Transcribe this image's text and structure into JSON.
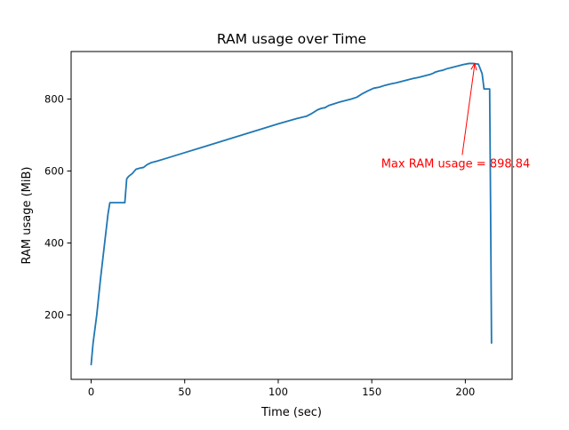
{
  "chart_data": {
    "type": "line",
    "title": "RAM usage over Time",
    "xlabel": "Time (sec)",
    "ylabel": "RAM usage (MiB)",
    "xlim": [
      -10.7,
      225
    ],
    "ylim": [
      21,
      932
    ],
    "xticks": [
      0,
      50,
      100,
      150,
      200
    ],
    "xtick_labels": [
      "0",
      "50",
      "100",
      "150",
      "200"
    ],
    "yticks": [
      200,
      400,
      600,
      800
    ],
    "ytick_labels": [
      "200",
      "400",
      "600",
      "800"
    ],
    "grid": false,
    "legend": "none",
    "series": [
      {
        "color": "#1f77b4",
        "x": [
          0,
          1,
          3,
          5,
          7,
          9,
          10,
          11,
          13,
          15,
          17,
          18,
          19,
          20,
          22,
          24,
          26,
          28,
          30,
          32,
          35,
          40,
          50,
          60,
          70,
          80,
          90,
          100,
          110,
          115,
          118,
          121,
          123,
          125,
          127,
          130,
          133,
          136,
          139,
          142,
          145,
          148,
          151,
          154,
          157,
          160,
          163,
          166,
          169,
          172,
          175,
          178,
          181,
          183,
          184,
          186,
          188,
          190,
          193,
          196,
          199,
          202,
          204,
          205,
          207,
          209,
          210,
          211,
          212,
          213,
          213.5,
          214
        ],
        "y": [
          62,
          120,
          200,
          300,
          390,
          480,
          512,
          512,
          512,
          512,
          512,
          512,
          578,
          585,
          593,
          605,
          608,
          610,
          618,
          623,
          627,
          635,
          651,
          667,
          683,
          699,
          715,
          731,
          746,
          752,
          760,
          770,
          774,
          776,
          782,
          787,
          792,
          796,
          800,
          805,
          815,
          823,
          830,
          833,
          838,
          842,
          845,
          849,
          853,
          857,
          860,
          864,
          868,
          872,
          875,
          878,
          880,
          884,
          888,
          892,
          896,
          898.84,
          898.84,
          898,
          897,
          870,
          828,
          828,
          828,
          828,
          500,
          122
        ]
      }
    ],
    "annotation": {
      "text": "Max RAM usage = 898.84",
      "color": "#ff0000",
      "arrow_tip": [
        205,
        898.84
      ],
      "text_anchor": [
        155,
        610
      ]
    }
  }
}
